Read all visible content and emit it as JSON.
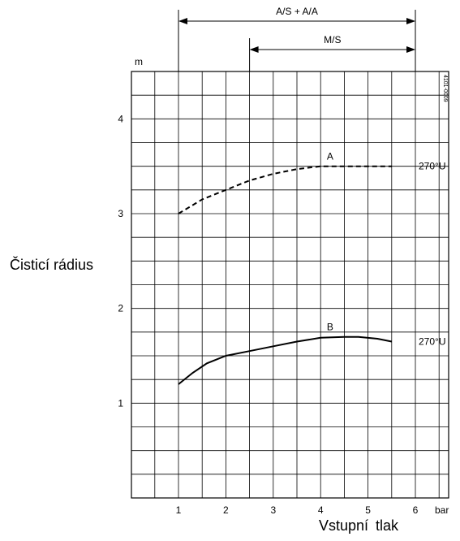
{
  "chart_data": {
    "type": "line",
    "xlabel": "Vstupní tlak",
    "ylabel": "Čisticí rádius",
    "xunit": "bar",
    "yunit": "m",
    "xlim": [
      0,
      6.75
    ],
    "ylim": [
      0,
      4.5
    ],
    "xticks": [
      1,
      2,
      3,
      4,
      5,
      6
    ],
    "yticks": [
      1,
      2,
      3,
      4
    ],
    "grid": true,
    "series": [
      {
        "name": "A",
        "style": "dashed",
        "end_label": "270°U",
        "x": [
          1,
          1.5,
          2,
          2.5,
          3,
          3.5,
          4,
          4.5,
          5,
          5.5
        ],
        "y": [
          3.0,
          3.15,
          3.25,
          3.35,
          3.42,
          3.47,
          3.5,
          3.5,
          3.5,
          3.5
        ]
      },
      {
        "name": "B",
        "style": "solid",
        "end_label": "270°U",
        "x": [
          1,
          1.3,
          1.6,
          2,
          2.5,
          3,
          3.5,
          4,
          4.5,
          4.8,
          5.2,
          5.5
        ],
        "y": [
          1.2,
          1.32,
          1.42,
          1.5,
          1.55,
          1.6,
          1.65,
          1.69,
          1.7,
          1.7,
          1.68,
          1.65
        ]
      }
    ],
    "ranges": [
      {
        "label": "A/S + A/A",
        "from": 1,
        "to": 6
      },
      {
        "label": "M/S",
        "from": 2.5,
        "to": 6
      }
    ],
    "code": "4101-0009"
  }
}
